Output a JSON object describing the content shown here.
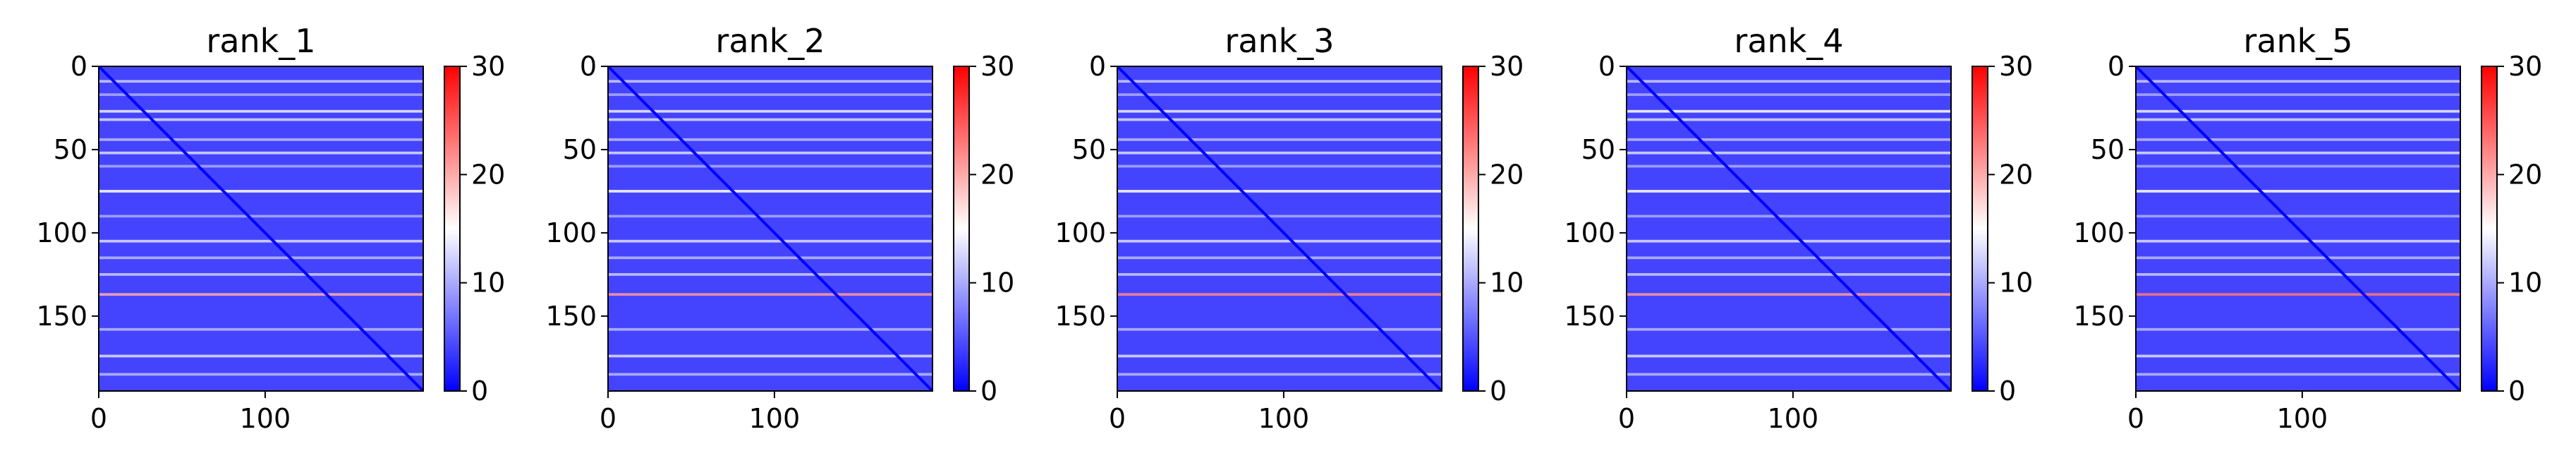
{
  "figure": {
    "colormap": [
      "#0000ff",
      "#ffffff",
      "#ff0000"
    ],
    "colormap_name": "bwr"
  },
  "chart_data": [
    {
      "type": "heatmap",
      "title": "rank_1",
      "xlabel": "",
      "ylabel": "",
      "n": 195,
      "xlim": [
        0,
        195
      ],
      "ylim": [
        195,
        0
      ],
      "xticks": [
        0,
        100
      ],
      "yticks": [
        0,
        50,
        100,
        150
      ],
      "vlim": [
        0,
        30
      ],
      "colorbar_ticks": [
        0,
        10,
        20,
        30
      ],
      "row_bands": [
        {
          "row": 9,
          "value": 12
        },
        {
          "row": 17,
          "value": 10
        },
        {
          "row": 27,
          "value": 14
        },
        {
          "row": 32,
          "value": 13
        },
        {
          "row": 44,
          "value": 11
        },
        {
          "row": 52,
          "value": 13
        },
        {
          "row": 60,
          "value": 10
        },
        {
          "row": 75,
          "value": 15
        },
        {
          "row": 90,
          "value": 10
        },
        {
          "row": 105,
          "value": 13
        },
        {
          "row": 115,
          "value": 11
        },
        {
          "row": 125,
          "value": 12
        },
        {
          "row": 137,
          "value": 20
        },
        {
          "row": 158,
          "value": 11
        },
        {
          "row": 174,
          "value": 13
        },
        {
          "row": 185,
          "value": 11
        }
      ],
      "diagonal_value": 0
    },
    {
      "type": "heatmap",
      "title": "rank_2",
      "xlabel": "",
      "ylabel": "",
      "n": 195,
      "xlim": [
        0,
        195
      ],
      "ylim": [
        195,
        0
      ],
      "xticks": [
        0,
        100
      ],
      "yticks": [
        0,
        50,
        100,
        150
      ],
      "vlim": [
        0,
        30
      ],
      "colorbar_ticks": [
        0,
        10,
        20,
        30
      ],
      "row_bands": [
        {
          "row": 9,
          "value": 12
        },
        {
          "row": 17,
          "value": 10
        },
        {
          "row": 27,
          "value": 14
        },
        {
          "row": 32,
          "value": 13
        },
        {
          "row": 44,
          "value": 11
        },
        {
          "row": 52,
          "value": 13
        },
        {
          "row": 60,
          "value": 10
        },
        {
          "row": 75,
          "value": 15
        },
        {
          "row": 90,
          "value": 10
        },
        {
          "row": 105,
          "value": 13
        },
        {
          "row": 115,
          "value": 11
        },
        {
          "row": 125,
          "value": 12
        },
        {
          "row": 137,
          "value": 21
        },
        {
          "row": 158,
          "value": 11
        },
        {
          "row": 174,
          "value": 13
        },
        {
          "row": 185,
          "value": 11
        }
      ],
      "diagonal_value": 0
    },
    {
      "type": "heatmap",
      "title": "rank_3",
      "xlabel": "",
      "ylabel": "",
      "n": 195,
      "xlim": [
        0,
        195
      ],
      "ylim": [
        195,
        0
      ],
      "xticks": [
        0,
        100
      ],
      "yticks": [
        0,
        50,
        100,
        150
      ],
      "vlim": [
        0,
        30
      ],
      "colorbar_ticks": [
        0,
        10,
        20,
        30
      ],
      "row_bands": [
        {
          "row": 9,
          "value": 12
        },
        {
          "row": 17,
          "value": 10
        },
        {
          "row": 27,
          "value": 14
        },
        {
          "row": 32,
          "value": 13
        },
        {
          "row": 44,
          "value": 11
        },
        {
          "row": 52,
          "value": 13
        },
        {
          "row": 60,
          "value": 10
        },
        {
          "row": 75,
          "value": 15
        },
        {
          "row": 90,
          "value": 10
        },
        {
          "row": 105,
          "value": 13
        },
        {
          "row": 115,
          "value": 11
        },
        {
          "row": 125,
          "value": 12
        },
        {
          "row": 137,
          "value": 22
        },
        {
          "row": 158,
          "value": 11
        },
        {
          "row": 174,
          "value": 13
        },
        {
          "row": 185,
          "value": 11
        }
      ],
      "diagonal_value": 0
    },
    {
      "type": "heatmap",
      "title": "rank_4",
      "xlabel": "",
      "ylabel": "",
      "n": 195,
      "xlim": [
        0,
        195
      ],
      "ylim": [
        195,
        0
      ],
      "xticks": [
        0,
        100
      ],
      "yticks": [
        0,
        50,
        100,
        150
      ],
      "vlim": [
        0,
        30
      ],
      "colorbar_ticks": [
        0,
        10,
        20,
        30
      ],
      "row_bands": [
        {
          "row": 9,
          "value": 12
        },
        {
          "row": 17,
          "value": 10
        },
        {
          "row": 27,
          "value": 15
        },
        {
          "row": 32,
          "value": 13
        },
        {
          "row": 44,
          "value": 11
        },
        {
          "row": 52,
          "value": 13
        },
        {
          "row": 60,
          "value": 10
        },
        {
          "row": 75,
          "value": 15
        },
        {
          "row": 90,
          "value": 10
        },
        {
          "row": 105,
          "value": 13
        },
        {
          "row": 115,
          "value": 11
        },
        {
          "row": 125,
          "value": 12
        },
        {
          "row": 137,
          "value": 21
        },
        {
          "row": 158,
          "value": 11
        },
        {
          "row": 174,
          "value": 13
        },
        {
          "row": 185,
          "value": 11
        }
      ],
      "diagonal_value": 0
    },
    {
      "type": "heatmap",
      "title": "rank_5",
      "xlabel": "",
      "ylabel": "",
      "n": 195,
      "xlim": [
        0,
        195
      ],
      "ylim": [
        195,
        0
      ],
      "xticks": [
        0,
        100
      ],
      "yticks": [
        0,
        50,
        100,
        150
      ],
      "vlim": [
        0,
        30
      ],
      "colorbar_ticks": [
        0,
        10,
        20,
        30
      ],
      "row_bands": [
        {
          "row": 9,
          "value": 12
        },
        {
          "row": 17,
          "value": 10
        },
        {
          "row": 27,
          "value": 14
        },
        {
          "row": 32,
          "value": 13
        },
        {
          "row": 44,
          "value": 11
        },
        {
          "row": 52,
          "value": 13
        },
        {
          "row": 60,
          "value": 10
        },
        {
          "row": 75,
          "value": 15
        },
        {
          "row": 90,
          "value": 10
        },
        {
          "row": 105,
          "value": 13
        },
        {
          "row": 115,
          "value": 11
        },
        {
          "row": 125,
          "value": 12
        },
        {
          "row": 137,
          "value": 23
        },
        {
          "row": 158,
          "value": 11
        },
        {
          "row": 174,
          "value": 13
        },
        {
          "row": 185,
          "value": 11
        }
      ],
      "diagonal_value": 0
    }
  ]
}
